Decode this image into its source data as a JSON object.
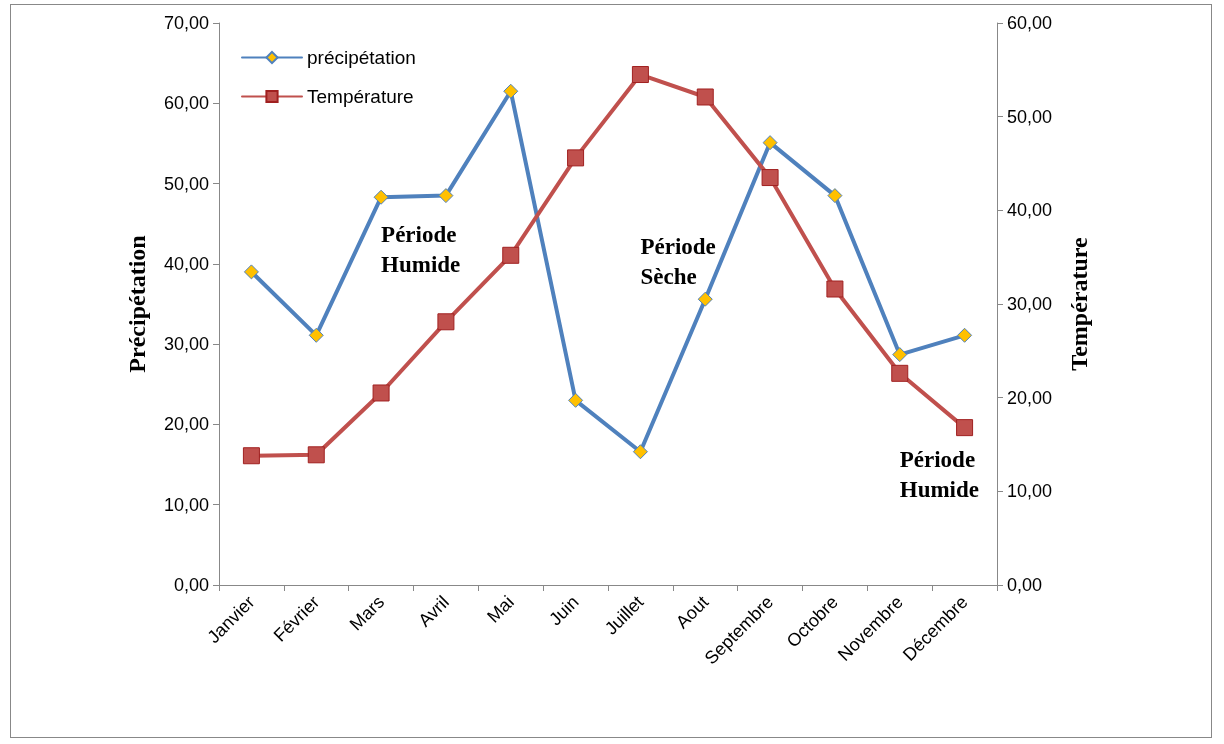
{
  "chart_data": {
    "type": "line",
    "categories": [
      "Janvier",
      "Février",
      "Mars",
      "Avril",
      "Mai",
      "Juin",
      "Juillet",
      "Aout",
      "Septembre",
      "Octobre",
      "Novembre",
      "Décembre"
    ],
    "series": [
      {
        "name": "précipétation",
        "color": "#4f81bd",
        "marker": "diamond",
        "values": [
          39.0,
          31.1,
          48.3,
          48.5,
          61.5,
          23.0,
          16.6,
          35.6,
          55.1,
          48.5,
          28.7,
          31.1
        ]
      },
      {
        "name": "Température",
        "color": "#c0504d",
        "marker": "square",
        "axis": "y2",
        "values": [
          13.8,
          13.9,
          20.5,
          28.1,
          35.2,
          45.6,
          54.5,
          52.1,
          43.5,
          31.6,
          22.6,
          16.8
        ]
      }
    ],
    "ylabel": "Précipétation",
    "y2label": "Température",
    "ylim": [
      0,
      70
    ],
    "yticks": [
      {
        "value": 0,
        "label": "0,00"
      },
      {
        "value": 10,
        "label": "10,00"
      },
      {
        "value": 20,
        "label": "20,00"
      },
      {
        "value": 30,
        "label": "30,00"
      },
      {
        "value": 40,
        "label": "40,00"
      },
      {
        "value": 50,
        "label": "50,00"
      },
      {
        "value": 60,
        "label": "60,00"
      },
      {
        "value": 70,
        "label": "70,00"
      }
    ],
    "y2lim": [
      0,
      60
    ],
    "y2ticks": [
      {
        "value": 0,
        "label": "0,00"
      },
      {
        "value": 10,
        "label": "10,00"
      },
      {
        "value": 20,
        "label": "20,00"
      },
      {
        "value": 30,
        "label": "30,00"
      },
      {
        "value": 40,
        "label": "40,00"
      },
      {
        "value": 50,
        "label": "50,00"
      },
      {
        "value": 60,
        "label": "60,00"
      }
    ],
    "annotations": [
      "Période Humide",
      "Période Sèche",
      "Période Humide"
    ],
    "grid": false,
    "legend": "top left",
    "line_style": "solid"
  }
}
